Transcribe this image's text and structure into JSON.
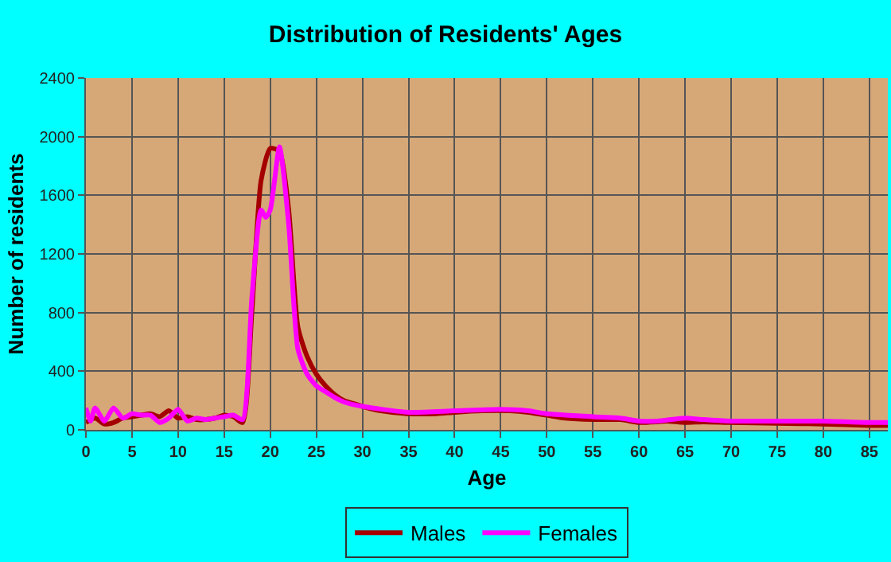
{
  "chart_data": {
    "type": "line",
    "title": "Distribution of Residents' Ages",
    "xlabel": "Age",
    "ylabel": "Number of residents",
    "xlim": [
      0,
      87
    ],
    "xticks": [
      0,
      5,
      10,
      15,
      20,
      25,
      30,
      35,
      40,
      45,
      50,
      55,
      60,
      65,
      70,
      75,
      80,
      85
    ],
    "ylim": [
      0,
      2400
    ],
    "yticks": [
      0,
      400,
      800,
      1200,
      1600,
      2000,
      2400
    ],
    "grid": true,
    "legend": "bottom",
    "series": [
      {
        "name": "Males",
        "color": "#a50000",
        "x": [
          0,
          1,
          2,
          3,
          4,
          5,
          6,
          7,
          8,
          9,
          10,
          11,
          12,
          13,
          14,
          15,
          16,
          17,
          18,
          19,
          20,
          21,
          22,
          23,
          24,
          25,
          26,
          27,
          28,
          29,
          30,
          32,
          35,
          38,
          40,
          43,
          46,
          48,
          50,
          52,
          55,
          58,
          60,
          62,
          63,
          65,
          67,
          70,
          75,
          80,
          85,
          87
        ],
        "values": [
          50,
          80,
          40,
          50,
          80,
          90,
          100,
          110,
          90,
          130,
          80,
          90,
          70,
          70,
          80,
          100,
          90,
          50,
          800,
          1700,
          1920,
          1900,
          1500,
          700,
          500,
          380,
          300,
          240,
          200,
          180,
          160,
          130,
          110,
          110,
          120,
          130,
          130,
          120,
          100,
          80,
          70,
          70,
          50,
          55,
          60,
          50,
          55,
          50,
          45,
          40,
          30,
          30
        ]
      },
      {
        "name": "Females",
        "color": "#ff00ff",
        "x": [
          0,
          0.5,
          1,
          2,
          3,
          4,
          5,
          6,
          7,
          8,
          9,
          10,
          11,
          12,
          13,
          14,
          15,
          16,
          17,
          18,
          19,
          19.5,
          20,
          21,
          22,
          23,
          24,
          25,
          26,
          27,
          28,
          30,
          35,
          40,
          45,
          48,
          50,
          55,
          58,
          60,
          62,
          65,
          67,
          70,
          75,
          80,
          85,
          87
        ],
        "values": [
          150,
          60,
          150,
          60,
          150,
          80,
          110,
          100,
          100,
          50,
          80,
          140,
          60,
          80,
          70,
          80,
          90,
          100,
          70,
          900,
          1500,
          1450,
          1500,
          1930,
          1400,
          550,
          380,
          300,
          260,
          220,
          190,
          160,
          120,
          130,
          140,
          130,
          110,
          90,
          80,
          60,
          60,
          80,
          70,
          60,
          60,
          60,
          50,
          50
        ]
      }
    ]
  }
}
